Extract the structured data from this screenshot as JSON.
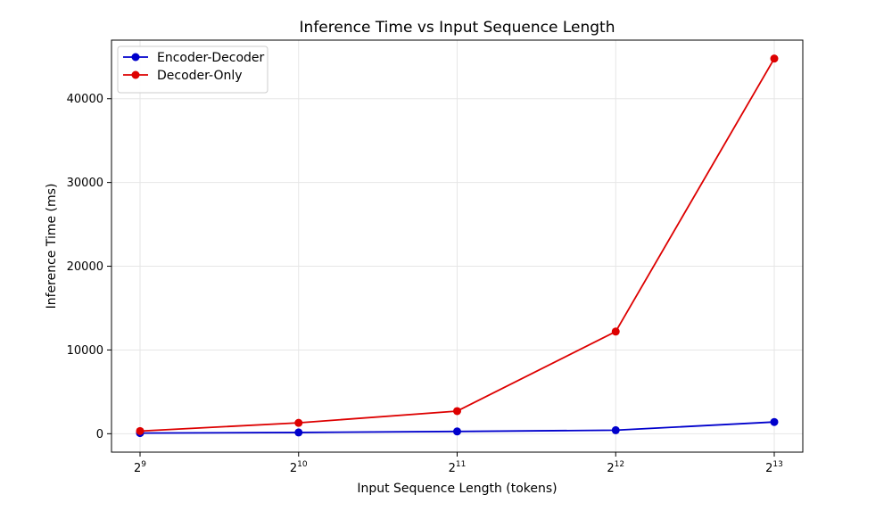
{
  "chart_data": {
    "type": "line",
    "title": "Inference Time vs Input Sequence Length",
    "xlabel": "Input Sequence Length (tokens)",
    "ylabel": "Inference Time (ms)",
    "x_scale": "log2",
    "x": [
      512,
      1024,
      2048,
      4096,
      8192
    ],
    "x_tick_labels": [
      {
        "base": "2",
        "exp": "9"
      },
      {
        "base": "2",
        "exp": "10"
      },
      {
        "base": "2",
        "exp": "11"
      },
      {
        "base": "2",
        "exp": "12"
      },
      {
        "base": "2",
        "exp": "13"
      }
    ],
    "y_ticks": [
      0,
      10000,
      20000,
      30000,
      40000
    ],
    "ylim": [
      -2200,
      47000
    ],
    "grid": true,
    "legend_position": "top-left",
    "series": [
      {
        "name": "Encoder-Decoder",
        "color": "#0000cc",
        "values": [
          80,
          150,
          270,
          420,
          1400
        ]
      },
      {
        "name": "Decoder-Only",
        "color": "#dd0000",
        "values": [
          320,
          1300,
          2700,
          12200,
          44800
        ]
      }
    ]
  }
}
